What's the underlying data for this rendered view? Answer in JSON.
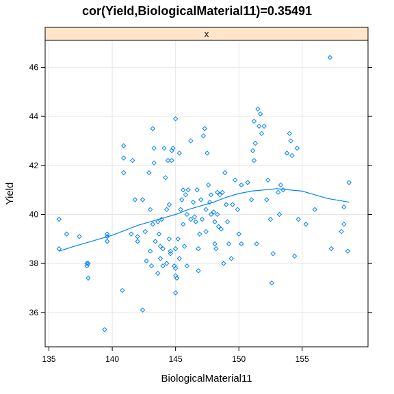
{
  "chart_data": {
    "type": "scatter",
    "title": "cor(Yield,BiologicalMaterial11)=0.35491",
    "strip_label": "x",
    "xlabel": "BiologicalMaterial11",
    "ylabel": "Yield",
    "xlim": [
      134.7,
      160.2
    ],
    "ylim": [
      34.6,
      47.1
    ],
    "xticks": [
      135,
      140,
      145,
      150,
      155
    ],
    "yticks": [
      36,
      38,
      40,
      42,
      44,
      46
    ],
    "grid": true,
    "point_marker": "open-diamond",
    "colors": {
      "series": "#0080ff",
      "strip": "#ffe5cc",
      "grid": "#e6e6e6"
    },
    "points": [
      [
        135.8,
        39.8
      ],
      [
        135.8,
        38.6
      ],
      [
        136.4,
        39.2
      ],
      [
        137.4,
        39.1
      ],
      [
        138.0,
        38.0
      ],
      [
        138.0,
        37.9
      ],
      [
        138.1,
        38.0
      ],
      [
        138.1,
        37.4
      ],
      [
        139.4,
        35.3
      ],
      [
        139.6,
        39.2
      ],
      [
        139.6,
        39.1
      ],
      [
        139.6,
        38.9
      ],
      [
        140.8,
        36.9
      ],
      [
        140.9,
        42.8
      ],
      [
        140.9,
        42.3
      ],
      [
        140.9,
        41.7
      ],
      [
        141.5,
        39.2
      ],
      [
        141.6,
        42.2
      ],
      [
        141.8,
        40.6
      ],
      [
        142.0,
        39.1
      ],
      [
        142.0,
        38.9
      ],
      [
        142.4,
        36.1
      ],
      [
        142.4,
        40.6
      ],
      [
        142.6,
        39.3
      ],
      [
        142.7,
        38.1
      ],
      [
        142.9,
        41.7
      ],
      [
        143.0,
        40.2
      ],
      [
        143.0,
        38.5
      ],
      [
        143.1,
        37.9
      ],
      [
        143.2,
        39.6
      ],
      [
        143.2,
        43.5
      ],
      [
        143.3,
        42.7
      ],
      [
        143.3,
        42.1
      ],
      [
        143.4,
        38.9
      ],
      [
        143.6,
        37.6
      ],
      [
        143.6,
        39.7
      ],
      [
        143.7,
        39.2
      ],
      [
        143.8,
        38.7
      ],
      [
        143.8,
        38.2
      ],
      [
        143.9,
        39.8
      ],
      [
        144.0,
        38.6
      ],
      [
        144.0,
        37.9
      ],
      [
        144.1,
        42.7
      ],
      [
        144.2,
        41.5
      ],
      [
        144.3,
        38.0
      ],
      [
        144.3,
        40.2
      ],
      [
        144.4,
        42.2
      ],
      [
        144.5,
        40.4
      ],
      [
        144.5,
        39.0
      ],
      [
        144.6,
        38.5
      ],
      [
        144.6,
        38.4
      ],
      [
        144.7,
        42.6
      ],
      [
        144.7,
        42.2
      ],
      [
        144.8,
        42.7
      ],
      [
        144.9,
        37.9
      ],
      [
        145.0,
        43.9
      ],
      [
        145.0,
        38.6
      ],
      [
        145.0,
        37.8
      ],
      [
        145.0,
        37.5
      ],
      [
        145.0,
        36.8
      ],
      [
        145.1,
        37.4
      ],
      [
        145.2,
        39.0
      ],
      [
        145.3,
        42.5
      ],
      [
        145.3,
        38.2
      ],
      [
        145.4,
        40.2
      ],
      [
        145.5,
        40.6
      ],
      [
        145.6,
        41.0
      ],
      [
        145.6,
        39.6
      ],
      [
        145.7,
        38.7
      ],
      [
        145.8,
        40.8
      ],
      [
        145.9,
        40.0
      ],
      [
        145.9,
        37.9
      ],
      [
        146.0,
        41.0
      ],
      [
        146.2,
        43.0
      ],
      [
        146.2,
        39.8
      ],
      [
        146.4,
        40.5
      ],
      [
        146.5,
        39.9
      ],
      [
        146.6,
        39.7
      ],
      [
        146.7,
        41.0
      ],
      [
        146.8,
        38.6
      ],
      [
        146.8,
        37.7
      ],
      [
        146.9,
        39.2
      ],
      [
        147.0,
        40.6
      ],
      [
        147.1,
        39.8
      ],
      [
        147.2,
        43.2
      ],
      [
        147.3,
        43.5
      ],
      [
        147.4,
        39.3
      ],
      [
        147.4,
        40.2
      ],
      [
        147.5,
        42.5
      ],
      [
        147.6,
        41.2
      ],
      [
        147.7,
        40.5
      ],
      [
        147.8,
        40.0
      ],
      [
        147.8,
        40.8
      ],
      [
        148.0,
        40.1
      ],
      [
        148.1,
        39.7
      ],
      [
        148.1,
        38.8
      ],
      [
        148.2,
        38.6
      ],
      [
        148.3,
        40.9
      ],
      [
        148.3,
        40.0
      ],
      [
        148.4,
        39.5
      ],
      [
        148.5,
        40.8
      ],
      [
        148.6,
        39.4
      ],
      [
        148.7,
        40.9
      ],
      [
        148.8,
        38.0
      ],
      [
        148.9,
        41.7
      ],
      [
        149.0,
        40.4
      ],
      [
        149.1,
        39.7
      ],
      [
        149.2,
        38.8
      ],
      [
        149.4,
        38.2
      ],
      [
        149.5,
        40.4
      ],
      [
        149.7,
        41.4
      ],
      [
        149.9,
        40.2
      ],
      [
        150.0,
        39.2
      ],
      [
        150.2,
        41.2
      ],
      [
        150.2,
        38.8
      ],
      [
        150.7,
        41.3
      ],
      [
        151.0,
        40.6
      ],
      [
        151.1,
        42.6
      ],
      [
        151.2,
        43.8
      ],
      [
        151.2,
        42.2
      ],
      [
        151.3,
        42.9
      ],
      [
        151.4,
        38.8
      ],
      [
        151.5,
        44.3
      ],
      [
        151.6,
        43.6
      ],
      [
        151.7,
        44.1
      ],
      [
        151.8,
        43.3
      ],
      [
        152.0,
        43.6
      ],
      [
        152.2,
        40.6
      ],
      [
        152.3,
        41.4
      ],
      [
        152.5,
        39.8
      ],
      [
        152.6,
        37.2
      ],
      [
        152.7,
        38.4
      ],
      [
        153.1,
        40.9
      ],
      [
        153.2,
        40.0
      ],
      [
        153.3,
        41.2
      ],
      [
        153.5,
        41.0
      ],
      [
        153.8,
        42.5
      ],
      [
        154.0,
        43.3
      ],
      [
        154.1,
        43.0
      ],
      [
        154.2,
        42.4
      ],
      [
        154.4,
        38.3
      ],
      [
        154.6,
        42.7
      ],
      [
        154.7,
        39.8
      ],
      [
        155.3,
        39.6
      ],
      [
        156.0,
        40.2
      ],
      [
        157.2,
        46.4
      ],
      [
        157.3,
        38.6
      ],
      [
        158.1,
        39.3
      ],
      [
        158.3,
        40.3
      ],
      [
        158.3,
        39.6
      ],
      [
        158.6,
        38.5
      ],
      [
        158.7,
        41.3
      ]
    ],
    "smooth": [
      [
        135.8,
        38.5
      ],
      [
        137.0,
        38.7
      ],
      [
        138.0,
        38.85
      ],
      [
        139.0,
        39.0
      ],
      [
        140.0,
        39.15
      ],
      [
        141.0,
        39.35
      ],
      [
        142.0,
        39.55
      ],
      [
        143.0,
        39.7
      ],
      [
        144.0,
        39.85
      ],
      [
        145.0,
        40.0
      ],
      [
        146.0,
        40.2
      ],
      [
        147.0,
        40.35
      ],
      [
        148.0,
        40.5
      ],
      [
        149.0,
        40.7
      ],
      [
        150.0,
        40.85
      ],
      [
        151.0,
        40.95
      ],
      [
        152.0,
        41.0
      ],
      [
        153.0,
        41.05
      ],
      [
        154.0,
        41.0
      ],
      [
        155.0,
        40.95
      ],
      [
        156.0,
        40.8
      ],
      [
        157.0,
        40.65
      ],
      [
        158.7,
        40.5
      ]
    ]
  }
}
